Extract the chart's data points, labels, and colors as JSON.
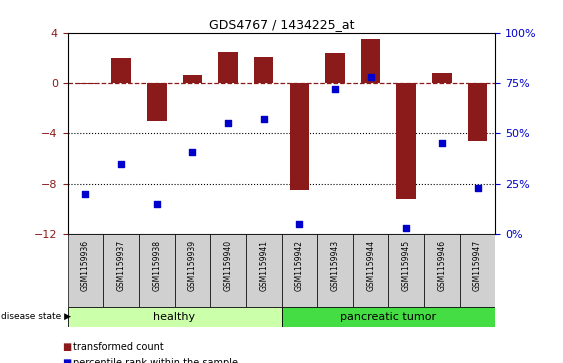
{
  "title": "GDS4767 / 1434225_at",
  "samples": [
    "GSM1159936",
    "GSM1159937",
    "GSM1159938",
    "GSM1159939",
    "GSM1159940",
    "GSM1159941",
    "GSM1159942",
    "GSM1159943",
    "GSM1159944",
    "GSM1159945",
    "GSM1159946",
    "GSM1159947"
  ],
  "bar_values": [
    -0.05,
    2.0,
    -3.0,
    0.6,
    2.5,
    2.1,
    -8.5,
    2.4,
    3.5,
    -9.2,
    0.8,
    -4.6
  ],
  "dot_percentiles": [
    20,
    35,
    15,
    41,
    55,
    57,
    5,
    72,
    78,
    3,
    45,
    23
  ],
  "ylim": [
    -12,
    4
  ],
  "y2lim": [
    0,
    100
  ],
  "y2_ticks": [
    0,
    25,
    50,
    75,
    100
  ],
  "y2_labels": [
    "0%",
    "25%",
    "50%",
    "75%",
    "100%"
  ],
  "yticks": [
    -12,
    -8,
    -4,
    0,
    4
  ],
  "dotted_lines": [
    -4,
    -8
  ],
  "healthy_count": 6,
  "bar_color": "#8B1A1A",
  "dot_color": "#0000CC",
  "healthy_light_color": "#ccffaa",
  "tumor_color": "#44dd44",
  "group_labels": [
    "healthy",
    "pancreatic tumor"
  ],
  "legend_bar_label": "transformed count",
  "legend_dot_label": "percentile rank within the sample",
  "disease_state_label": "disease state"
}
